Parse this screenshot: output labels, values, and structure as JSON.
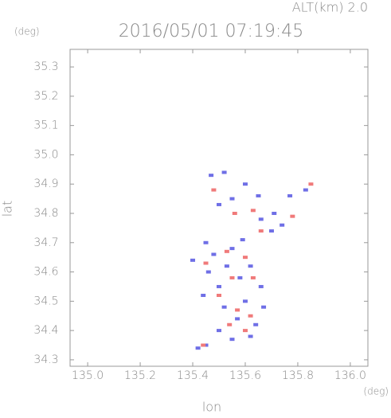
{
  "chart_data": {
    "type": "scatter",
    "title": "2016/05/01 07:19:45",
    "subtitle": "ALT(km) 2.0",
    "y_unit": "(deg)",
    "x_unit": "(deg)",
    "xlabel": "lon",
    "ylabel": "lat",
    "xlim": [
      134.933,
      136.067
    ],
    "ylim": [
      34.278,
      35.36
    ],
    "xticks": [
      {
        "value": 135.0,
        "label": "135.0"
      },
      135.2,
      135.4,
      135.6,
      135.8,
      {
        "value": 136.0,
        "label": "136.0"
      }
    ],
    "yticks": [
      34.3,
      34.4,
      34.5,
      34.6,
      34.7,
      34.8,
      34.9,
      {
        "value": 35.0,
        "label": "35.0"
      },
      35.1,
      35.2,
      35.3
    ],
    "series": [
      {
        "color": "#6f6fe6",
        "x": [
          135.47,
          135.52,
          135.55,
          135.5,
          135.6,
          135.65,
          135.71,
          135.77,
          135.83,
          135.7,
          135.45,
          135.4,
          135.48,
          135.55,
          135.62,
          135.58,
          135.5,
          135.44,
          135.52,
          135.6,
          135.67,
          135.57,
          135.64,
          135.5,
          135.55,
          135.45,
          135.42,
          135.62,
          135.66,
          135.46,
          135.53,
          135.59,
          135.66,
          135.74
        ],
        "values": [
          34.93,
          34.94,
          34.85,
          34.83,
          34.9,
          34.86,
          34.8,
          34.86,
          34.88,
          34.74,
          34.7,
          34.64,
          34.66,
          34.68,
          34.62,
          34.58,
          34.55,
          34.52,
          34.48,
          34.5,
          34.48,
          34.44,
          34.42,
          34.4,
          34.37,
          34.35,
          34.34,
          34.38,
          34.55,
          34.6,
          34.62,
          34.71,
          34.78,
          34.76
        ]
      },
      {
        "color": "#f07a7a",
        "x": [
          135.48,
          135.56,
          135.63,
          135.78,
          135.85,
          135.53,
          135.45,
          135.6,
          135.55,
          135.63,
          135.5,
          135.57,
          135.62,
          135.54,
          135.6,
          135.44,
          135.66
        ],
        "values": [
          34.88,
          34.8,
          34.81,
          34.79,
          34.9,
          34.67,
          34.63,
          34.65,
          34.58,
          34.58,
          34.52,
          34.47,
          34.45,
          34.42,
          34.4,
          34.35,
          34.74
        ]
      }
    ]
  }
}
